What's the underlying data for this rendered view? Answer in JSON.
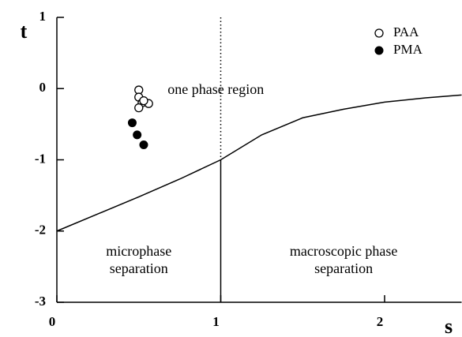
{
  "chart_data": {
    "type": "scatter",
    "x_label": "s",
    "y_label": "t",
    "xlim": [
      0,
      2.47
    ],
    "ylim": [
      -3,
      1
    ],
    "xticks": [
      0,
      1,
      2
    ],
    "yticks": [
      -3,
      -2,
      -1,
      0,
      1
    ],
    "legend": "upper right",
    "series": [
      {
        "name": "PAA",
        "marker": "open",
        "color": "#000000",
        "x": [
          0.5,
          0.5,
          0.52,
          0.5,
          0.56,
          0.53
        ],
        "values": [
          -0.02,
          -0.12,
          -0.2,
          -0.27,
          -0.21,
          -0.17
        ]
      },
      {
        "name": "PMA",
        "marker": "filled",
        "color": "#000000",
        "x": [
          0.46,
          0.49,
          0.53
        ],
        "values": [
          -0.48,
          -0.65,
          -0.79
        ]
      },
      {
        "line": "solid",
        "color": "#000000",
        "x": [
          0,
          0.25,
          0.5,
          0.75,
          1,
          1.25,
          1.5,
          1.75,
          2,
          2.25,
          2.47
        ],
        "values": [
          -2,
          -1.76,
          -1.52,
          -1.27,
          -1,
          -0.65,
          -0.41,
          -0.29,
          -0.19,
          -0.13,
          -0.09
        ]
      },
      {
        "line": "dotted",
        "color": "#000000",
        "x": [
          1,
          1
        ],
        "values": [
          1,
          -1
        ]
      },
      {
        "line": "solid",
        "color": "#000000",
        "x": [
          1,
          1
        ],
        "values": [
          -1,
          -3
        ]
      }
    ],
    "annotations": [
      {
        "lines": [
          "one phase region"
        ],
        "x": 0.97,
        "y": -0.03
      },
      {
        "lines": [
          "microphase",
          "separation"
        ],
        "x": 0.5,
        "y": -2.3
      },
      {
        "lines": [
          "macroscopic phase",
          "separation"
        ],
        "x": 1.75,
        "y": -2.3
      }
    ]
  }
}
